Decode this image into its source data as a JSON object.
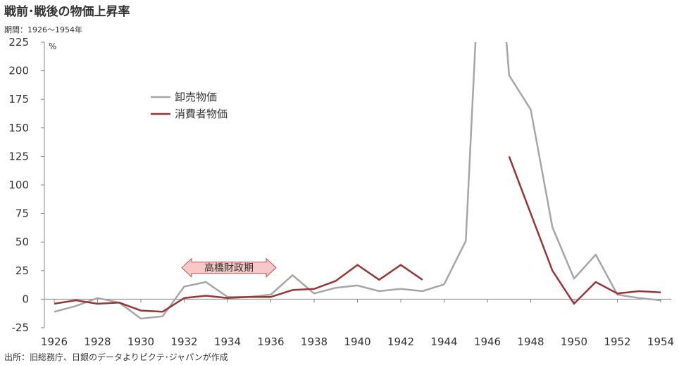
{
  "header": {
    "title": "戦前･戦後の物価上昇率",
    "subtitle": "期間：1926～1954年"
  },
  "footer": {
    "source": "出所：旧総務庁、日銀のデータよりピクテ･ジャパンが作成"
  },
  "colors": {
    "wholesale": "#a6a6a6",
    "consumer": "#953735",
    "annotation_fill": "#f6c9c8",
    "annotation_stroke": "#c0504d"
  },
  "chart_data": {
    "type": "line",
    "ylabel": "%",
    "ylim": [
      -25,
      225
    ],
    "yticks": [
      -25,
      0,
      25,
      50,
      75,
      100,
      125,
      150,
      175,
      200,
      225
    ],
    "xlim": [
      1926,
      1954
    ],
    "xticks": [
      1926,
      1928,
      1930,
      1932,
      1934,
      1936,
      1938,
      1940,
      1942,
      1944,
      1946,
      1948,
      1950,
      1952,
      1954
    ],
    "legend_position": "upper-left",
    "annotation": {
      "text": "高橋財政期",
      "x_start": 1932,
      "x_end": 1936,
      "y": 30
    },
    "series": [
      {
        "name": "卸売物価",
        "color_key": "wholesale",
        "points": [
          [
            1926,
            -11
          ],
          [
            1927,
            -6
          ],
          [
            1928,
            1
          ],
          [
            1929,
            -3
          ],
          [
            1930,
            -17
          ],
          [
            1931,
            -15
          ],
          [
            1932,
            11
          ],
          [
            1933,
            15
          ],
          [
            1934,
            2
          ],
          [
            1935,
            2
          ],
          [
            1936,
            4
          ],
          [
            1937,
            21
          ],
          [
            1938,
            5
          ],
          [
            1939,
            10
          ],
          [
            1940,
            12
          ],
          [
            1941,
            7
          ],
          [
            1942,
            9
          ],
          [
            1943,
            7
          ],
          [
            1944,
            13
          ],
          [
            1945,
            51
          ],
          [
            1946,
            440
          ],
          [
            1947,
            196
          ],
          [
            1948,
            166
          ],
          [
            1949,
            63
          ],
          [
            1950,
            18
          ],
          [
            1951,
            39
          ],
          [
            1952,
            4
          ],
          [
            1953,
            1
          ],
          [
            1954,
            -1
          ]
        ]
      },
      {
        "name": "消費者物価",
        "color_key": "consumer",
        "points": [
          [
            1926,
            -4
          ],
          [
            1927,
            -1
          ],
          [
            1928,
            -4
          ],
          [
            1929,
            -3
          ],
          [
            1930,
            -10
          ],
          [
            1931,
            -11
          ],
          [
            1932,
            1
          ],
          [
            1933,
            3
          ],
          [
            1934,
            1
          ],
          [
            1935,
            2
          ],
          [
            1936,
            2
          ],
          [
            1937,
            8
          ],
          [
            1938,
            9
          ],
          [
            1939,
            16
          ],
          [
            1940,
            30
          ],
          [
            1941,
            17
          ],
          [
            1942,
            30
          ],
          [
            1943,
            17
          ],
          null,
          [
            1947,
            125
          ],
          [
            1948,
            75
          ],
          [
            1949,
            25
          ],
          [
            1950,
            -4
          ],
          [
            1951,
            15
          ],
          [
            1952,
            5
          ],
          [
            1953,
            7
          ],
          [
            1954,
            6
          ]
        ]
      }
    ]
  }
}
